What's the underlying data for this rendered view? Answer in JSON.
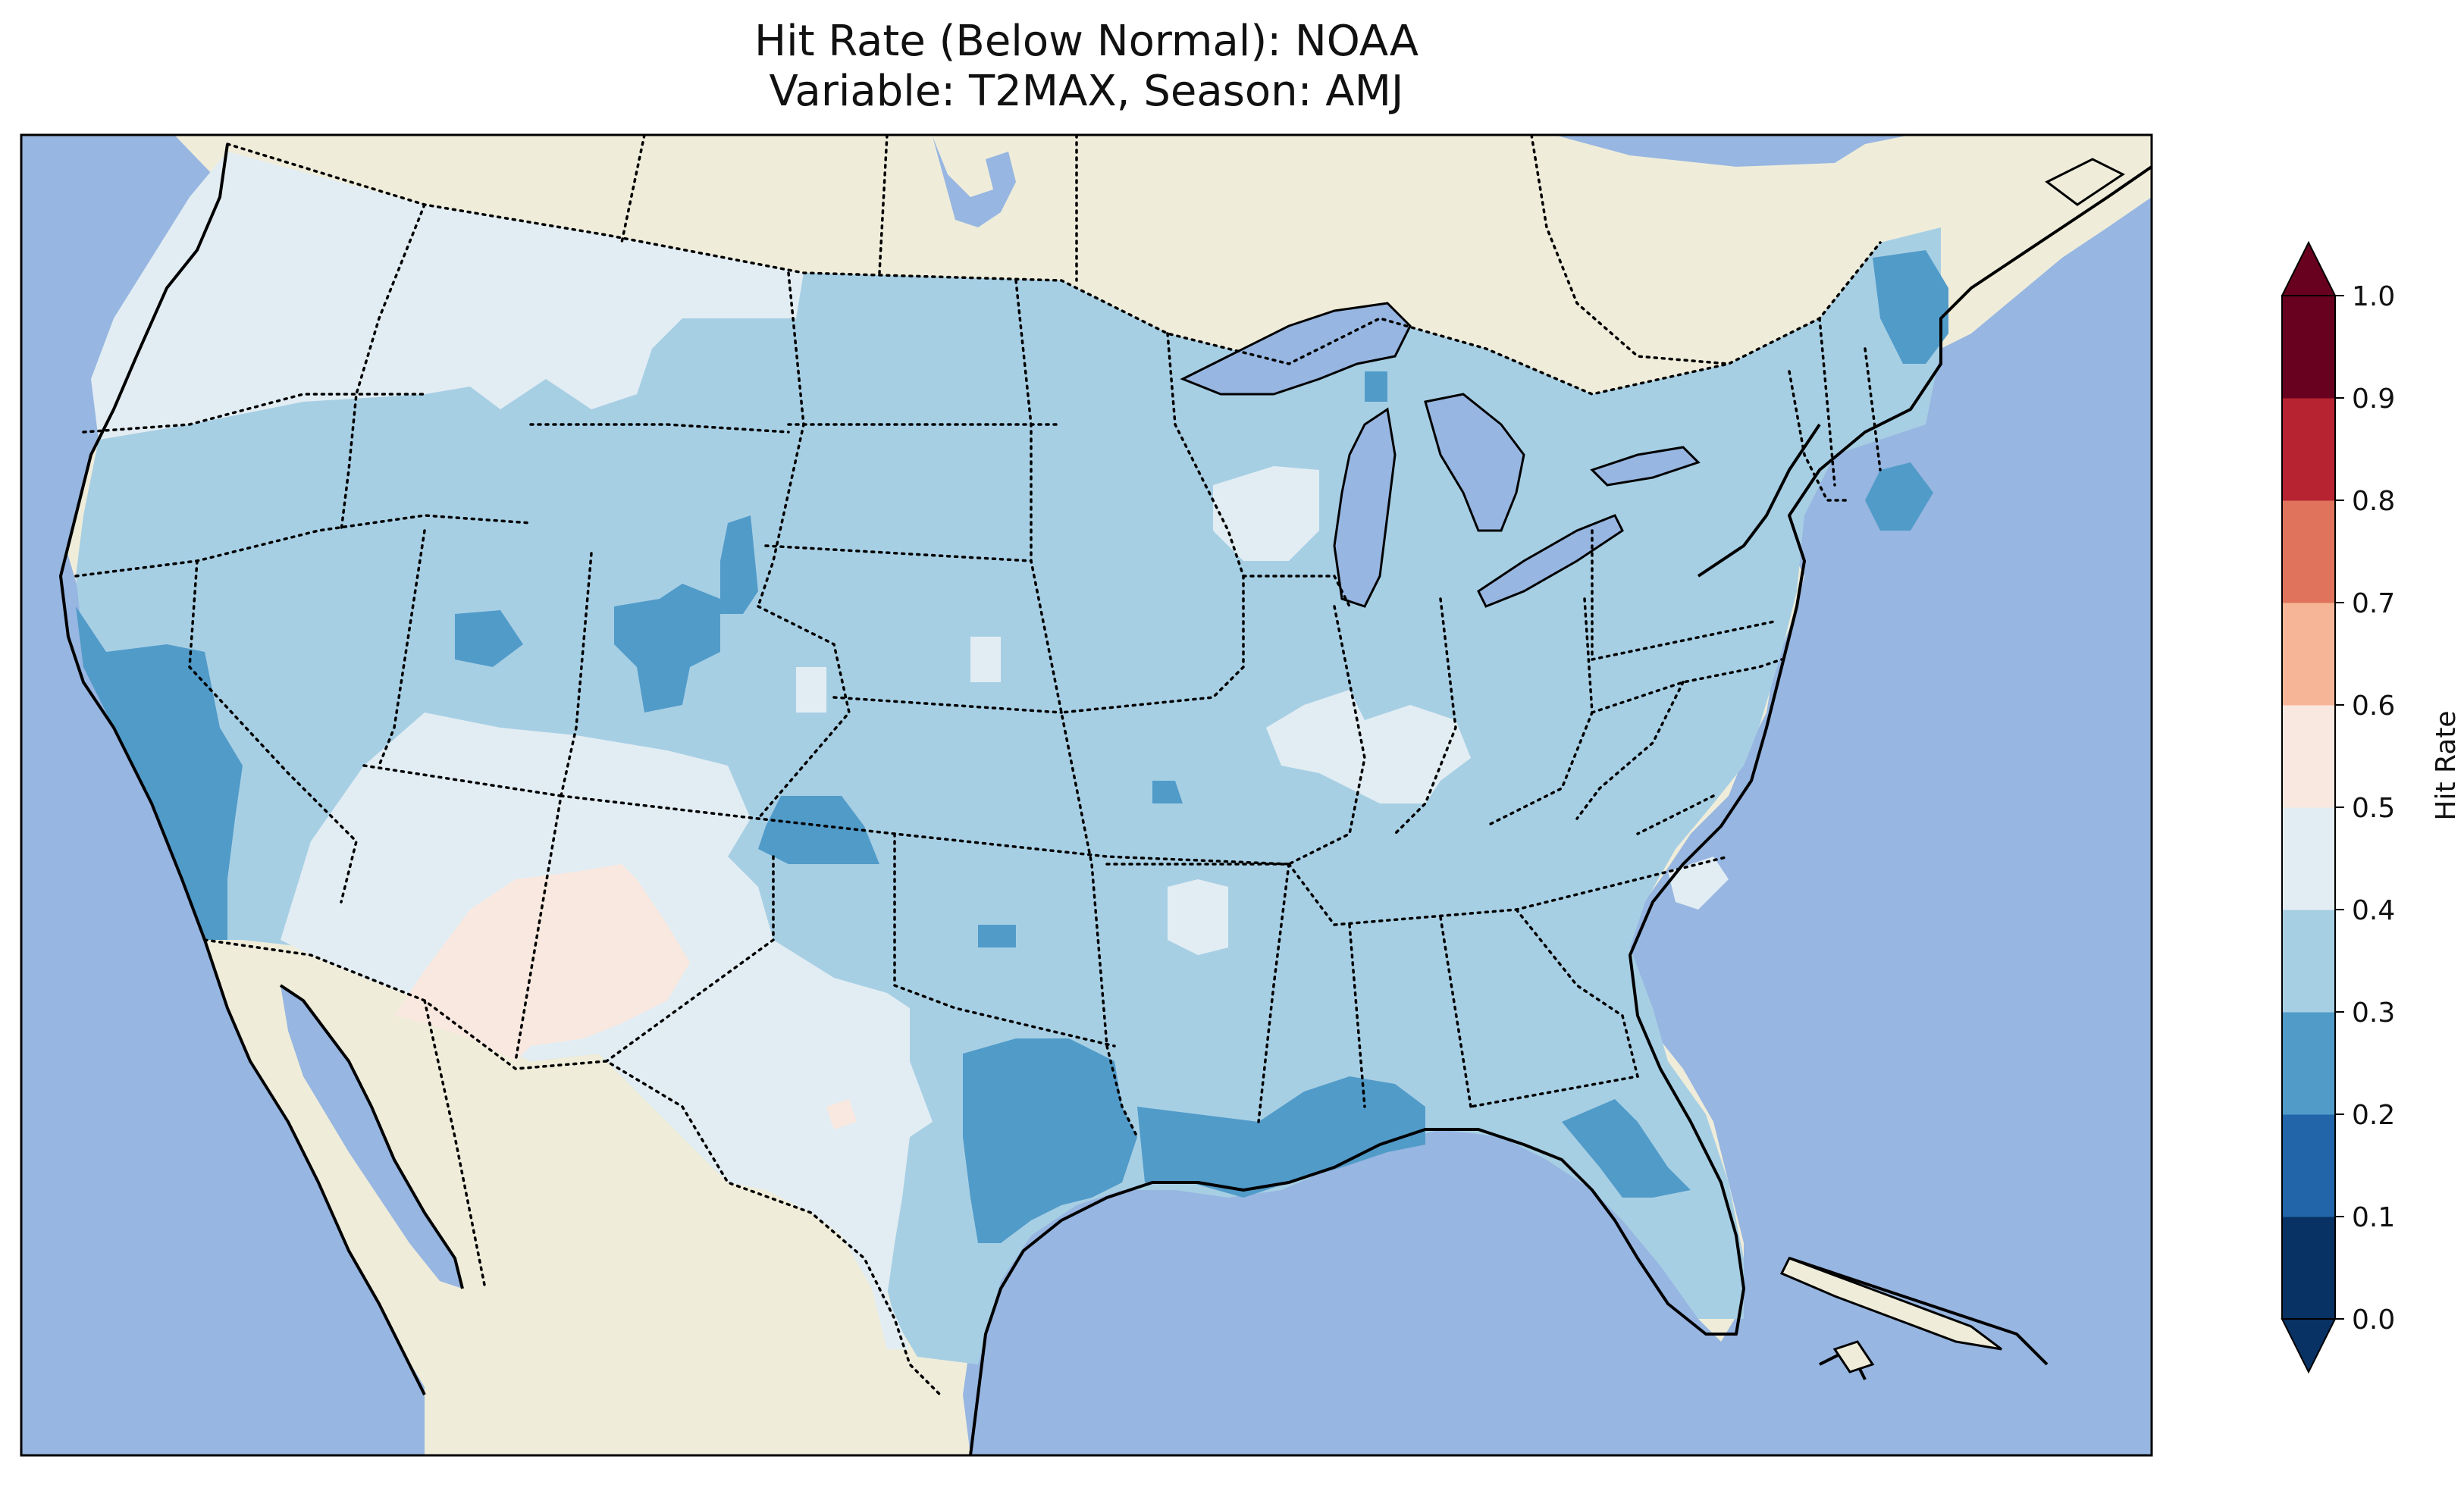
{
  "title": {
    "line1": "Hit Rate (Below Normal): NOAA",
    "line2": "Variable: T2MAX, Season: AMJ"
  },
  "map": {
    "ocean_color": "#97b6e1",
    "land_color": "#efedda",
    "lake_color": "#97b6e1",
    "coast_color": "#000000"
  },
  "colorbar": {
    "label": "Hit Rate",
    "ticks": [
      "0.0",
      "0.1",
      "0.2",
      "0.3",
      "0.4",
      "0.5",
      "0.6",
      "0.7",
      "0.8",
      "0.9",
      "1.0"
    ],
    "bins": [
      {
        "range": [
          0.0,
          0.1
        ],
        "color": "#083263"
      },
      {
        "range": [
          0.1,
          0.2
        ],
        "color": "#2265a9"
      },
      {
        "range": [
          0.2,
          0.3
        ],
        "color": "#519bc9"
      },
      {
        "range": [
          0.3,
          0.4
        ],
        "color": "#a7cfe4"
      },
      {
        "range": [
          0.4,
          0.5
        ],
        "color": "#e2edf3"
      },
      {
        "range": [
          0.5,
          0.6
        ],
        "color": "#f9e8df"
      },
      {
        "range": [
          0.6,
          0.7
        ],
        "color": "#f6b596"
      },
      {
        "range": [
          0.7,
          0.8
        ],
        "color": "#df735c"
      },
      {
        "range": [
          0.8,
          0.9
        ],
        "color": "#b72331"
      },
      {
        "range": [
          0.9,
          1.0
        ],
        "color": "#68001f"
      }
    ],
    "extend": "both"
  }
}
